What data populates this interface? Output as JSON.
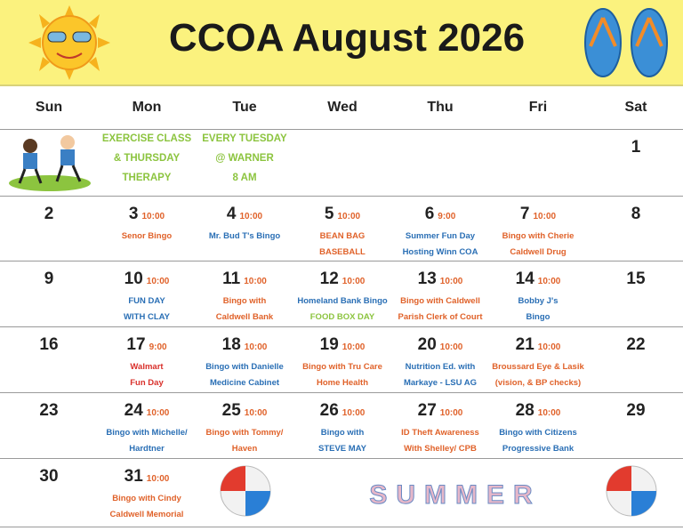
{
  "header": {
    "title": "CCOA August 2026"
  },
  "weekdays": [
    "Sun",
    "Mon",
    "Tue",
    "Wed",
    "Thu",
    "Fri",
    "Sat"
  ],
  "banner": {
    "lines": [
      "EXERCISE CLASS",
      "EVERY TUESDAY",
      "& THURSDAY",
      "@ WARNER",
      "THERAPY",
      "8 AM"
    ],
    "color": "#8cc43f"
  },
  "time_color": "#e0622a",
  "summer_art": "SUMMER",
  "weeks": [
    [
      null,
      null,
      null,
      null,
      null,
      null,
      {
        "day": 1
      }
    ],
    [
      {
        "day": 2
      },
      {
        "day": 3,
        "time": "10:00",
        "lines": [
          "Senor Bingo"
        ],
        "colors": [
          "#e0622a"
        ]
      },
      {
        "day": 4,
        "time": "10:00",
        "lines": [
          "Mr. Bud T's Bingo"
        ],
        "colors": [
          "#2a6fb5"
        ]
      },
      {
        "day": 5,
        "time": "10:00",
        "lines": [
          "BEAN BAG",
          "BASEBALL"
        ],
        "colors": [
          "#e0622a",
          "#e0622a"
        ]
      },
      {
        "day": 6,
        "time": "9:00",
        "lines": [
          "Summer Fun Day",
          "Hosting Winn COA"
        ],
        "colors": [
          "#2a6fb5",
          "#2a6fb5"
        ]
      },
      {
        "day": 7,
        "time": "10:00",
        "lines": [
          "Bingo with Cherie",
          "Caldwell Drug"
        ],
        "colors": [
          "#e0622a",
          "#e0622a"
        ]
      },
      {
        "day": 8
      }
    ],
    [
      {
        "day": 9
      },
      {
        "day": 10,
        "time": "10:00",
        "lines": [
          "FUN DAY",
          "WITH CLAY"
        ],
        "colors": [
          "#2a6fb5",
          "#2a6fb5"
        ]
      },
      {
        "day": 11,
        "time": "10:00",
        "lines": [
          "Bingo with",
          "Caldwell Bank"
        ],
        "colors": [
          "#e0622a",
          "#e0622a"
        ]
      },
      {
        "day": 12,
        "time": "10:00",
        "lines": [
          "Homeland Bank Bingo",
          "FOOD BOX DAY"
        ],
        "colors": [
          "#2a6fb5",
          "#8cc43f"
        ]
      },
      {
        "day": 13,
        "time": "10:00",
        "lines": [
          "Bingo with Caldwell",
          "Parish Clerk of Court"
        ],
        "colors": [
          "#e0622a",
          "#e0622a"
        ]
      },
      {
        "day": 14,
        "time": "10:00",
        "lines": [
          "Bobby J's",
          "Bingo"
        ],
        "colors": [
          "#2a6fb5",
          "#2a6fb5"
        ]
      },
      {
        "day": 15
      }
    ],
    [
      {
        "day": 16
      },
      {
        "day": 17,
        "time": "9:00",
        "lines": [
          "Walmart",
          "Fun Day"
        ],
        "colors": [
          "#d9302b",
          "#d9302b"
        ]
      },
      {
        "day": 18,
        "time": "10:00",
        "lines": [
          "Bingo with Danielle",
          "Medicine Cabinet"
        ],
        "colors": [
          "#2a6fb5",
          "#2a6fb5"
        ]
      },
      {
        "day": 19,
        "time": "10:00",
        "lines": [
          "Bingo with Tru Care",
          "Home Health"
        ],
        "colors": [
          "#e0622a",
          "#e0622a"
        ]
      },
      {
        "day": 20,
        "time": "10:00",
        "lines": [
          "Nutrition Ed. with",
          "Markaye - LSU AG"
        ],
        "colors": [
          "#2a6fb5",
          "#2a6fb5"
        ]
      },
      {
        "day": 21,
        "time": "10:00",
        "lines": [
          "Broussard Eye & Lasik",
          "(vision, & BP checks)"
        ],
        "colors": [
          "#e0622a",
          "#e0622a"
        ]
      },
      {
        "day": 22
      }
    ],
    [
      {
        "day": 23
      },
      {
        "day": 24,
        "time": "10:00",
        "lines": [
          "Bingo with Michelle/",
          "Hardtner"
        ],
        "colors": [
          "#2a6fb5",
          "#2a6fb5"
        ]
      },
      {
        "day": 25,
        "time": "10:00",
        "lines": [
          "Bingo with Tommy/",
          "Haven"
        ],
        "colors": [
          "#e0622a",
          "#e0622a"
        ]
      },
      {
        "day": 26,
        "time": "10:00",
        "lines": [
          "Bingo with",
          "STEVE MAY"
        ],
        "colors": [
          "#2a6fb5",
          "#2a6fb5"
        ]
      },
      {
        "day": 27,
        "time": "10:00",
        "lines": [
          "ID Theft Awareness",
          "With Shelley/ CPB"
        ],
        "colors": [
          "#e0622a",
          "#e0622a"
        ]
      },
      {
        "day": 28,
        "time": "10:00",
        "lines": [
          "Bingo with Citizens",
          "Progressive Bank"
        ],
        "colors": [
          "#2a6fb5",
          "#2a6fb5"
        ]
      },
      {
        "day": 29
      }
    ],
    [
      {
        "day": 30
      },
      {
        "day": 31,
        "time": "10:00",
        "lines": [
          "Bingo with Cindy",
          "Caldwell Memorial"
        ],
        "colors": [
          "#e0622a",
          "#e0622a"
        ]
      },
      null,
      null,
      null,
      null,
      null
    ]
  ]
}
